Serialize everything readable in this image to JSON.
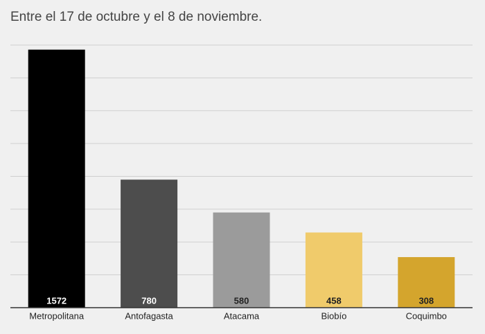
{
  "chart_data": {
    "type": "bar",
    "title": "Entre el 17 de octubre y el 8 de noviembre.",
    "categories": [
      "Metropolitana",
      "Antofagasta",
      "Atacama",
      "Biobío",
      "Coquimbo"
    ],
    "values": [
      1572,
      780,
      580,
      458,
      308
    ],
    "colors": [
      "#000000",
      "#4d4d4d",
      "#9b9b9b",
      "#f0cb6b",
      "#d4a52d"
    ],
    "ylim": [
      0,
      1600
    ],
    "yticks": [
      0,
      200,
      400,
      600,
      800,
      1000,
      1200,
      1400,
      1600
    ],
    "grid": true
  }
}
